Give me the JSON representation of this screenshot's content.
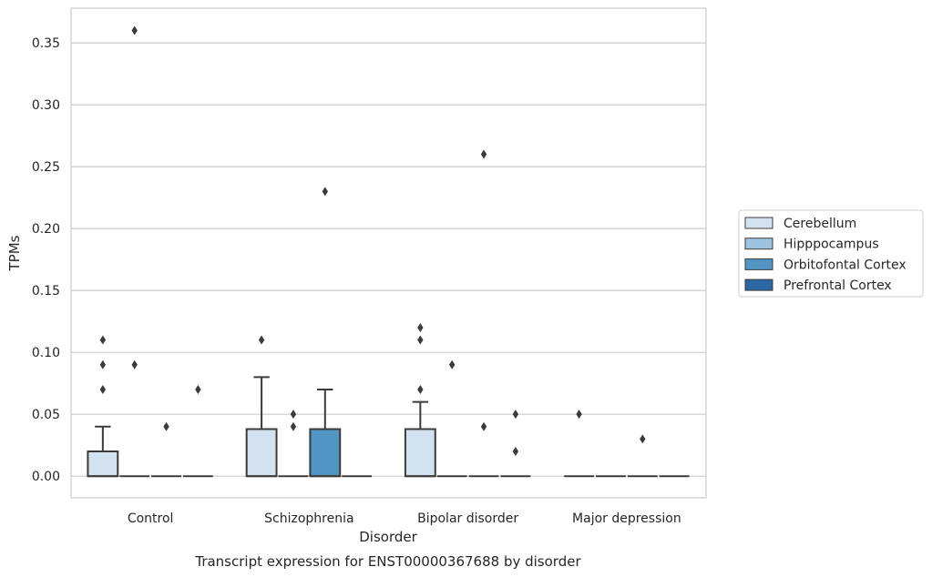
{
  "chart_data": {
    "type": "box",
    "xlabel": "Disorder",
    "ylabel": "TPMs",
    "caption": "Transcript expression for ENST00000367688 by disorder",
    "categories": [
      "Control",
      "Schizophrenia",
      "Bipolar disorder",
      "Major depression"
    ],
    "ylim": [
      -0.0175,
      0.378
    ],
    "yticks": [
      0.0,
      0.05,
      0.1,
      0.15,
      0.2,
      0.25,
      0.3,
      0.35
    ],
    "ytick_labels": [
      "0.00",
      "0.05",
      "0.10",
      "0.15",
      "0.20",
      "0.25",
      "0.30",
      "0.35"
    ],
    "grid": "horizontal",
    "legend_position": "right",
    "colors": {
      "Cerebellum": "#d3e2f1",
      "Hipppocampus": "#9dc3de",
      "Orbitofontal Cortex": "#5295c4",
      "Prefrontal Cortex": "#2967a5"
    },
    "series": [
      {
        "name": "Cerebellum",
        "boxes": [
          {
            "q1": 0.0,
            "median": 0.0,
            "q3": 0.02,
            "whisker_low": 0.0,
            "whisker_high": 0.04,
            "outliers": [
              0.07,
              0.09,
              0.11
            ]
          },
          {
            "q1": 0.0,
            "median": 0.0,
            "q3": 0.038,
            "whisker_low": 0.0,
            "whisker_high": 0.08,
            "outliers": [
              0.11
            ]
          },
          {
            "q1": 0.0,
            "median": 0.0,
            "q3": 0.038,
            "whisker_low": 0.0,
            "whisker_high": 0.06,
            "outliers": [
              0.07,
              0.11,
              0.12
            ]
          },
          {
            "q1": 0.0,
            "median": 0.0,
            "q3": 0.0,
            "whisker_low": 0.0,
            "whisker_high": 0.0,
            "outliers": [
              0.05
            ]
          }
        ]
      },
      {
        "name": "Hipppocampus",
        "boxes": [
          {
            "q1": 0.0,
            "median": 0.0,
            "q3": 0.0,
            "whisker_low": 0.0,
            "whisker_high": 0.0,
            "outliers": [
              0.09,
              0.36
            ]
          },
          {
            "q1": 0.0,
            "median": 0.0,
            "q3": 0.0,
            "whisker_low": 0.0,
            "whisker_high": 0.0,
            "outliers": [
              0.04,
              0.05
            ]
          },
          {
            "q1": 0.0,
            "median": 0.0,
            "q3": 0.0,
            "whisker_low": 0.0,
            "whisker_high": 0.0,
            "outliers": [
              0.09
            ]
          },
          {
            "q1": 0.0,
            "median": 0.0,
            "q3": 0.0,
            "whisker_low": 0.0,
            "whisker_high": 0.0,
            "outliers": []
          }
        ]
      },
      {
        "name": "Orbitofontal Cortex",
        "boxes": [
          {
            "q1": 0.0,
            "median": 0.0,
            "q3": 0.0,
            "whisker_low": 0.0,
            "whisker_high": 0.0,
            "outliers": [
              0.04
            ]
          },
          {
            "q1": 0.0,
            "median": 0.0,
            "q3": 0.038,
            "whisker_low": 0.0,
            "whisker_high": 0.07,
            "outliers": [
              0.23
            ]
          },
          {
            "q1": 0.0,
            "median": 0.0,
            "q3": 0.0,
            "whisker_low": 0.0,
            "whisker_high": 0.0,
            "outliers": [
              0.04,
              0.26
            ]
          },
          {
            "q1": 0.0,
            "median": 0.0,
            "q3": 0.0,
            "whisker_low": 0.0,
            "whisker_high": 0.0,
            "outliers": [
              0.03
            ]
          }
        ]
      },
      {
        "name": "Prefrontal Cortex",
        "boxes": [
          {
            "q1": 0.0,
            "median": 0.0,
            "q3": 0.0,
            "whisker_low": 0.0,
            "whisker_high": 0.0,
            "outliers": [
              0.07
            ]
          },
          {
            "q1": 0.0,
            "median": 0.0,
            "q3": 0.0,
            "whisker_low": 0.0,
            "whisker_high": 0.0,
            "outliers": []
          },
          {
            "q1": 0.0,
            "median": 0.0,
            "q3": 0.0,
            "whisker_low": 0.0,
            "whisker_high": 0.0,
            "outliers": [
              0.02,
              0.05
            ]
          },
          {
            "q1": 0.0,
            "median": 0.0,
            "q3": 0.0,
            "whisker_low": 0.0,
            "whisker_high": 0.0,
            "outliers": []
          }
        ]
      }
    ]
  }
}
